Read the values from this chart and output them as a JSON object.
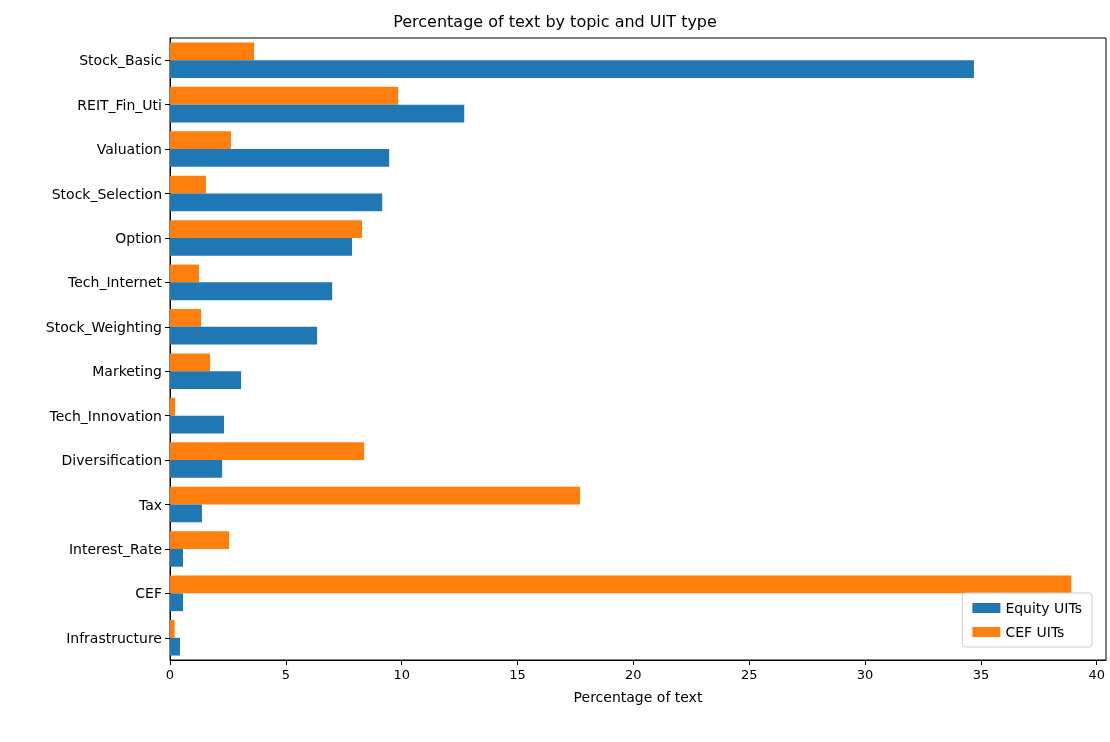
{
  "chart_data": {
    "type": "bar",
    "orientation": "horizontal",
    "title": "Percentage of text by topic and UIT type",
    "xlabel": "Percentage of text",
    "categories": [
      "Stock_Basic",
      "REIT_Fin_Uti",
      "Valuation",
      "Stock_Selection",
      "Option",
      "Tech_Internet",
      "Stock_Weighting",
      "Marketing",
      "Tech_Innovation",
      "Diversification",
      "Tax",
      "Interest_Rate",
      "CEF",
      "Infrastructure"
    ],
    "series": [
      {
        "name": "Equity UITs",
        "color": "#1f77b4",
        "values": [
          34.7,
          12.7,
          9.46,
          9.16,
          7.86,
          7.0,
          6.35,
          3.07,
          2.33,
          2.25,
          1.38,
          0.56,
          0.56,
          0.43
        ]
      },
      {
        "name": "CEF UITs",
        "color": "#ff7f0e",
        "values": [
          3.63,
          9.85,
          2.63,
          1.55,
          8.29,
          1.25,
          1.34,
          1.73,
          0.22,
          8.38,
          17.7,
          2.55,
          38.9,
          0.2
        ]
      }
    ],
    "xlim": [
      0,
      40.4
    ],
    "xticks": [
      0,
      5,
      10,
      15,
      20,
      25,
      30,
      35,
      40
    ],
    "grid": false,
    "legend": "bottom right"
  }
}
